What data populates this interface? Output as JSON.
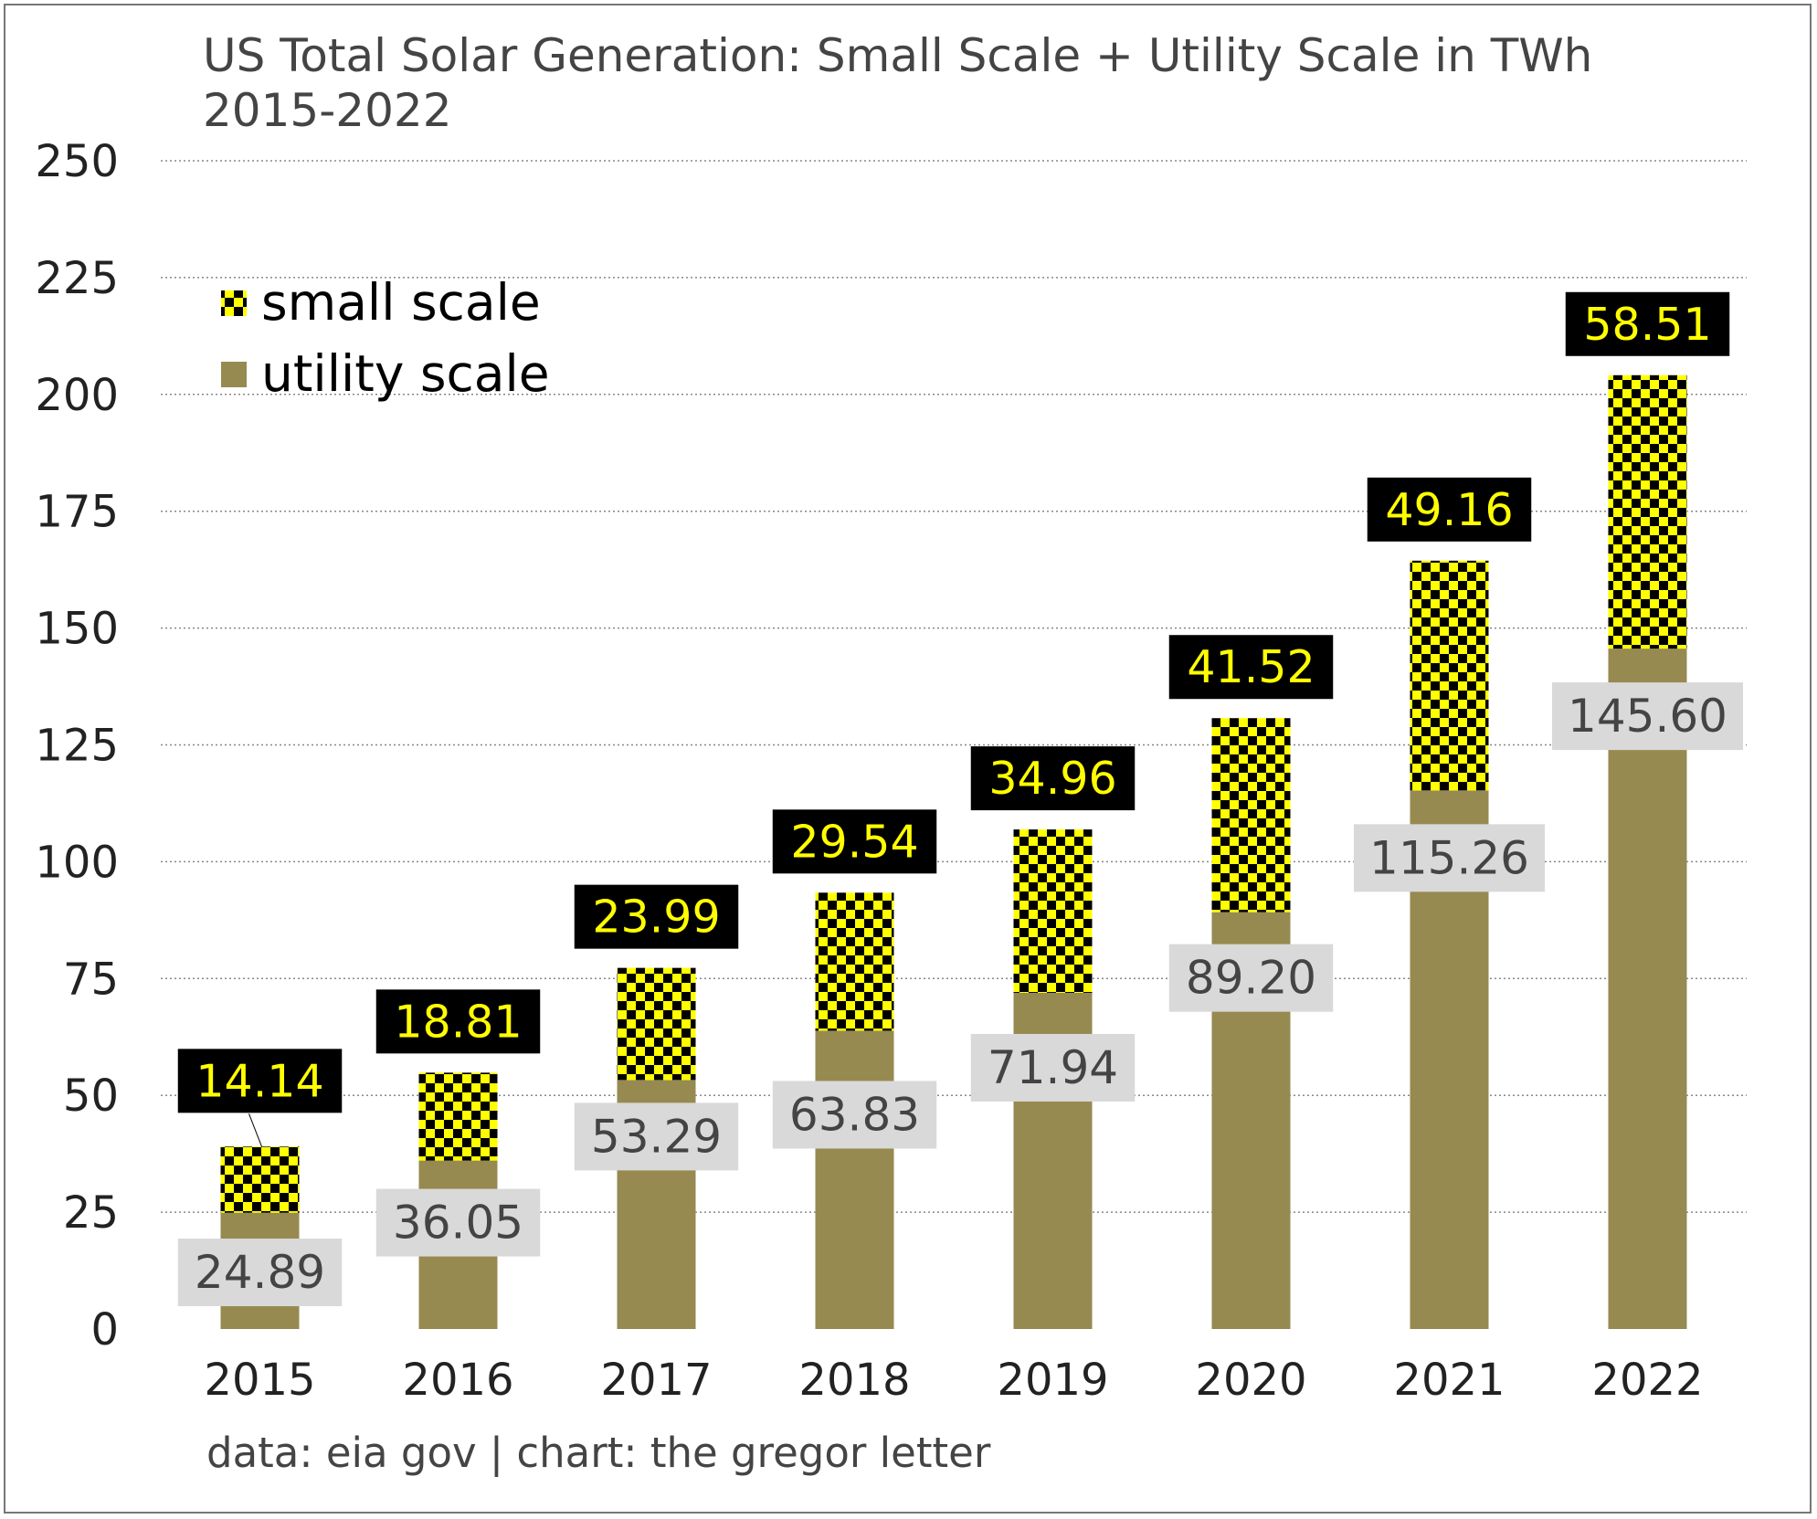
{
  "chart_data": {
    "type": "bar",
    "stacked": true,
    "title": "US Total Solar Generation: Small Scale + Utility Scale in TWh",
    "subtitle": "2015-2022",
    "source": "data: eia gov | chart: the gregor letter",
    "categories": [
      "2015",
      "2016",
      "2017",
      "2018",
      "2019",
      "2020",
      "2021",
      "2022"
    ],
    "series": [
      {
        "name": "utility scale",
        "values": [
          24.89,
          36.05,
          53.29,
          63.83,
          71.94,
          89.2,
          115.26,
          145.6
        ]
      },
      {
        "name": "small scale",
        "values": [
          14.14,
          18.81,
          23.99,
          29.54,
          34.96,
          41.52,
          49.16,
          58.51
        ]
      }
    ],
    "value_labels": {
      "utility scale": [
        "24.89",
        "36.05",
        "53.29",
        "63.83",
        "71.94",
        "89.20",
        "115.26",
        "145.60"
      ],
      "small scale": [
        "14.14",
        "18.81",
        "23.99",
        "29.54",
        "34.96",
        "41.52",
        "49.16",
        "58.51"
      ]
    },
    "ylim": [
      0,
      250
    ],
    "yticks": [
      "0",
      "25",
      "50",
      "75",
      "100",
      "125",
      "150",
      "175",
      "200",
      "225",
      "250"
    ],
    "grid": true,
    "legend_position": "top-left",
    "colors": {
      "utility": "#968a50",
      "small_check_a": "#ffff00",
      "small_check_b": "#000000",
      "small_label_bg": "#000000",
      "small_label_text": "#ffff00",
      "utility_label_bg": "#d9d9d9",
      "utility_label_text": "#444444",
      "grid": "#888888"
    }
  }
}
